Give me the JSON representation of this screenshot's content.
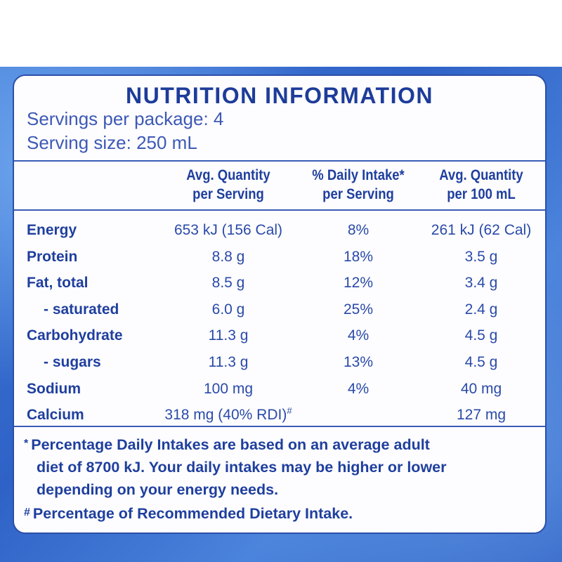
{
  "colors": {
    "ink": "#1f3f9e",
    "panel": "#fdfdff",
    "pack_blue": "#2f62c6"
  },
  "title": "NUTRITION INFORMATION",
  "servings_per_package": "Servings per package: 4",
  "serving_size": "Serving size: 250 mL",
  "columns": {
    "c1_line1": "Avg. Quantity",
    "c1_line2": "per Serving",
    "c2_line1": "% Daily Intake*",
    "c2_line2": "per Serving",
    "c3_line1": "Avg. Quantity",
    "c3_line2": "per 100 mL"
  },
  "rows": [
    {
      "name": "Energy",
      "per_serving": "653 kJ (156 Cal)",
      "daily_intake": "8%",
      "per_100ml": "261 kJ (62 Cal)"
    },
    {
      "name": "Protein",
      "per_serving": "8.8 g",
      "daily_intake": "18%",
      "per_100ml": "3.5 g"
    },
    {
      "name": "Fat, total",
      "per_serving": "8.5 g",
      "daily_intake": "12%",
      "per_100ml": "3.4 g"
    },
    {
      "name": "- saturated",
      "per_serving": "6.0 g",
      "daily_intake": "25%",
      "per_100ml": "2.4 g"
    },
    {
      "name": "Carbohydrate",
      "per_serving": "11.3 g",
      "daily_intake": "4%",
      "per_100ml": "4.5 g"
    },
    {
      "name": "- sugars",
      "per_serving": "11.3 g",
      "daily_intake": "13%",
      "per_100ml": "4.5 g"
    },
    {
      "name": "Sodium",
      "per_serving": "100 mg",
      "daily_intake": "4%",
      "per_100ml": "40 mg"
    },
    {
      "name": "Calcium",
      "per_serving": "318 mg (40% RDI)",
      "per_serving_mark": "#",
      "daily_intake": "",
      "per_100ml": "127 mg"
    }
  ],
  "footnotes": {
    "daily_mark": "*",
    "daily_line1": "Percentage Daily Intakes are based on an average adult",
    "daily_line2": "diet of 8700 kJ. Your daily intakes may be higher or lower",
    "daily_line3": "depending on your energy needs.",
    "rdi_mark": "#",
    "rdi_text": "Percentage of Recommended Dietary Intake."
  }
}
